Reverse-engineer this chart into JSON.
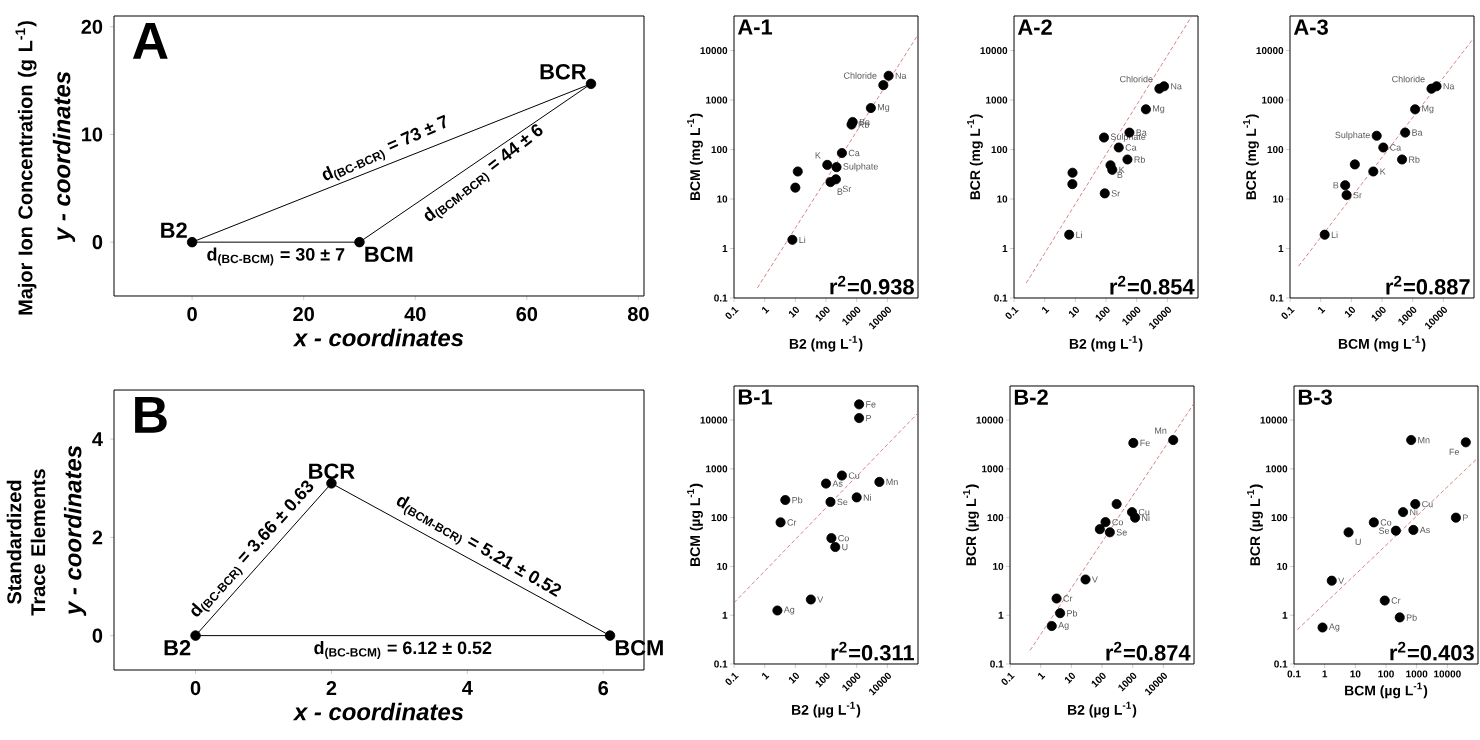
{
  "chart_data": [
    {
      "type": "scatter",
      "title": "A",
      "xlabel": "x - coordinates",
      "ylabel": "y - coordinates",
      "xlim": [
        -14,
        81
      ],
      "ylim": [
        -5,
        21
      ],
      "xticks": [
        0,
        20,
        40,
        60,
        80
      ],
      "yticks": [
        0,
        10,
        20
      ],
      "series": [
        {
          "type": "line",
          "color": "#000000",
          "x": [
            0,
            30
          ],
          "values": [
            0,
            0
          ]
        },
        {
          "type": "line",
          "color": "#000000",
          "x": [
            30,
            71.5
          ],
          "values": [
            0,
            14.7
          ]
        },
        {
          "type": "line",
          "color": "#000000",
          "x": [
            0,
            71.5
          ],
          "values": [
            0,
            14.7
          ]
        },
        {
          "color": "#000000",
          "marker": "circle",
          "x": [
            0,
            30,
            71.5
          ],
          "values": [
            0,
            0,
            14.7
          ]
        }
      ],
      "annotations": [
        "Major Ion Concentration (g L$^{-1}$)",
        {
          "text": "B2",
          "x": 0,
          "y": 0
        },
        {
          "text": "BCM",
          "x": 30,
          "y": 0
        },
        {
          "text": "BCR",
          "x": 71.5,
          "y": 14.7
        },
        {
          "text": "d$_{(BC-BCR)}$ = 73 ± 7",
          "x": 35.75,
          "y": 7.35
        },
        {
          "text": "d$_{(BCM-BCR)}$ = 44 ± 6",
          "x": 50.75,
          "y": 7.35
        },
        {
          "text": "d$_{(BC-BCM)}$ = 30 ± 7",
          "x": 15,
          "y": 0
        }
      ]
    },
    {
      "type": "scatter",
      "title": "A-1",
      "xlabel": "B2 (mg L$^{-1}$)",
      "ylabel": "BCM (mg L$^{-1}$)",
      "log": "xy",
      "xlim": [
        0.1,
        100000
      ],
      "ylim": [
        0.1,
        50000
      ],
      "xticks": [
        0.1,
        1,
        10,
        100,
        1000,
        10000
      ],
      "yticks": [
        0.1,
        1,
        10,
        100,
        1000,
        10000
      ],
      "series": [
        {
          "color": "#000000",
          "marker": "circle",
          "x": [
            8,
            10,
            12,
            110,
            220,
            140,
            210,
            330,
            680,
            740,
            2900,
            7400,
            11000
          ],
          "values": [
            1.5,
            17,
            36,
            49,
            44,
            22,
            25,
            85,
            320,
            360,
            690,
            2000,
            3100
          ]
        },
        {
          "type": "line",
          "color": "#cc6666",
          "line_style": "dashed",
          "x": [
            0.58,
            100000
          ],
          "values": [
            0.16,
            21000
          ]
        }
      ],
      "annotations": [
        "r$^{2}$=0.938",
        {
          "text": "Chloride",
          "x": 7400,
          "y": 2000
        },
        {
          "text": "Na",
          "x": 11000,
          "y": 3100
        },
        {
          "text": "Mg",
          "x": 2900,
          "y": 690
        },
        {
          "text": "Ba",
          "x": 740,
          "y": 360
        },
        {
          "text": "Rb",
          "x": 680,
          "y": 320
        },
        {
          "text": "Ca",
          "x": 330,
          "y": 85
        },
        {
          "text": "Sulphate",
          "x": 220,
          "y": 44
        },
        {
          "text": "K",
          "x": 110,
          "y": 49
        },
        {
          "text": "Sr",
          "x": 210,
          "y": 25
        },
        {
          "text": "B",
          "x": 140,
          "y": 22
        },
        {
          "text": "Li",
          "x": 8,
          "y": 1.5
        }
      ]
    },
    {
      "type": "scatter",
      "title": "A-2",
      "xlabel": "B2 (mg L$^{-1}$)",
      "ylabel": "BCR (mg L$^{-1}$)",
      "log": "xy",
      "xlim": [
        0.1,
        100000
      ],
      "ylim": [
        0.1,
        50000
      ],
      "xticks": [
        0.1,
        1,
        10,
        100,
        1000,
        10000
      ],
      "yticks": [
        0.1,
        1,
        10,
        100,
        1000,
        10000
      ],
      "series": [
        {
          "color": "#000000",
          "marker": "circle",
          "x": [
            6.3,
            8.1,
            8,
            91,
            140,
            160,
            86,
            260,
            500,
            580,
            2000,
            5500,
            7800
          ],
          "values": [
            1.9,
            34,
            20,
            13,
            48,
            39,
            175,
            110,
            63,
            220,
            650,
            1700,
            1900
          ]
        },
        {
          "type": "line",
          "color": "#cc6666",
          "line_style": "dashed",
          "x": [
            0.25,
            63000
          ],
          "values": [
            0.2,
            50000
          ]
        }
      ],
      "annotations": [
        "r$^{2}$=0.854",
        {
          "text": "Chloride",
          "x": 5500,
          "y": 1700
        },
        {
          "text": "Na",
          "x": 7800,
          "y": 1900
        },
        {
          "text": "Mg",
          "x": 2000,
          "y": 650
        },
        {
          "text": "Sulphate",
          "x": 86,
          "y": 175
        },
        {
          "text": "Ba",
          "x": 580,
          "y": 220
        },
        {
          "text": "Ca",
          "x": 260,
          "y": 110
        },
        {
          "text": "Rb",
          "x": 500,
          "y": 63
        },
        {
          "text": "K",
          "x": 160,
          "y": 39
        },
        {
          "text": "B",
          "x": 140,
          "y": 48
        },
        {
          "text": "Sr",
          "x": 91,
          "y": 13
        },
        {
          "text": "Li",
          "x": 6.3,
          "y": 1.9
        }
      ]
    },
    {
      "type": "scatter",
      "title": "A-3",
      "xlabel": "BCM (mg L$^{-1}$)",
      "ylabel": "BCR (mg L$^{-1}$)",
      "log": "xy",
      "xlim": [
        0.1,
        100000
      ],
      "ylim": [
        0.1,
        50000
      ],
      "xticks": [
        0.1,
        1,
        10,
        100,
        1000,
        10000
      ],
      "yticks": [
        0.1,
        1,
        10,
        100,
        1000,
        10000
      ],
      "series": [
        {
          "color": "#000000",
          "marker": "circle",
          "x": [
            1.35,
            6.3,
            7,
            13,
            52,
            67,
            110,
            450,
            570,
            1200,
            4100,
            6000
          ],
          "values": [
            1.9,
            19,
            12,
            50,
            36,
            190,
            110,
            63,
            220,
            650,
            1700,
            1900
          ]
        },
        {
          "type": "line",
          "color": "#cc6666",
          "line_style": "dashed",
          "x": [
            0.19,
            85000
          ],
          "values": [
            0.44,
            16000
          ]
        }
      ],
      "annotations": [
        "r$^{2}$=0.887",
        {
          "text": "Chloride",
          "x": 4100,
          "y": 1700
        },
        {
          "text": "Na",
          "x": 6000,
          "y": 1900
        },
        {
          "text": "Mg",
          "x": 1200,
          "y": 650
        },
        {
          "text": "Sulphate",
          "x": 67,
          "y": 190
        },
        {
          "text": "Ba",
          "x": 570,
          "y": 220
        },
        {
          "text": "Ca",
          "x": 110,
          "y": 110
        },
        {
          "text": "Rb",
          "x": 450,
          "y": 63
        },
        {
          "text": "K",
          "x": 52,
          "y": 36
        },
        {
          "text": "B",
          "x": 6.3,
          "y": 19
        },
        {
          "text": "Sr",
          "x": 7,
          "y": 12
        },
        {
          "text": "Li",
          "x": 1.35,
          "y": 1.9
        }
      ]
    },
    {
      "type": "scatter",
      "title": "B",
      "xlabel": "x - coordinates",
      "ylabel": "y - coordinates",
      "xlim": [
        -1.2,
        6.6
      ],
      "ylim": [
        -0.7,
        5
      ],
      "xticks": [
        0,
        2,
        4,
        6
      ],
      "yticks": [
        0,
        2,
        4
      ],
      "series": [
        {
          "type": "line",
          "color": "#000000",
          "x": [
            0,
            6.1
          ],
          "values": [
            0,
            0
          ]
        },
        {
          "type": "line",
          "color": "#000000",
          "x": [
            2,
            6.1
          ],
          "values": [
            3.1,
            0
          ]
        },
        {
          "type": "line",
          "color": "#000000",
          "x": [
            0,
            2
          ],
          "values": [
            0,
            3.1
          ]
        },
        {
          "color": "#000000",
          "marker": "circle",
          "x": [
            0,
            6.1,
            2
          ],
          "values": [
            0,
            0,
            3.1
          ]
        }
      ],
      "annotations": [
        "Standardized Trace Elements",
        {
          "text": "B2",
          "x": 0,
          "y": 0
        },
        {
          "text": "BCM",
          "x": 6.1,
          "y": 0
        },
        {
          "text": "BCR",
          "x": 2,
          "y": 3.1
        },
        {
          "text": "d$_{(BC-BCR)}$ = 3.66 ± 0.63",
          "x": 1,
          "y": 1.55
        },
        {
          "text": "d$_{(BCM-BCR)}$ = 5.21 ± 0.52",
          "x": 4.05,
          "y": 1.55
        },
        {
          "text": "d$_{(BC-BCM)}$ = 6.12 ± 0.52",
          "x": 3.05,
          "y": 0
        }
      ]
    },
    {
      "type": "scatter",
      "title": "B-1",
      "xlabel": "B2 (µg L$^{-1}$)",
      "ylabel": "BCM (µg L$^{-1}$)",
      "log": "xy",
      "xlim": [
        0.1,
        100000
      ],
      "ylim": [
        0.1,
        50000
      ],
      "xticks": [
        0.1,
        1,
        10,
        100,
        1000,
        10000
      ],
      "yticks": [
        0.1,
        1,
        10,
        100,
        1000,
        10000
      ],
      "series": [
        {
          "color": "#000000",
          "marker": "circle",
          "x": [
            2.6,
            32,
            3.3,
            4.7,
            140,
            100,
            330,
            1000,
            150,
            200,
            1200,
            1200,
            5500
          ],
          "values": [
            1.25,
            2.1,
            80,
            230,
            210,
            500,
            730,
            260,
            38,
            25,
            21000,
            11000,
            540
          ]
        },
        {
          "type": "line",
          "color": "#cc6666",
          "line_style": "dashed",
          "x": [
            0.1,
            100000
          ],
          "values": [
            1.8,
            14000
          ]
        }
      ],
      "annotations": [
        "r$^{2}$=0.311",
        {
          "text": "Fe",
          "x": 1200,
          "y": 21000
        },
        {
          "text": "P",
          "x": 1200,
          "y": 11000
        },
        {
          "text": "Mn",
          "x": 5500,
          "y": 540
        },
        {
          "text": "Cu",
          "x": 330,
          "y": 730
        },
        {
          "text": "As",
          "x": 100,
          "y": 500
        },
        {
          "text": "Se",
          "x": 140,
          "y": 210
        },
        {
          "text": "Ni",
          "x": 1000,
          "y": 260
        },
        {
          "text": "Pb",
          "x": 4.7,
          "y": 230
        },
        {
          "text": "Cr",
          "x": 3.3,
          "y": 80
        },
        {
          "text": "Co",
          "x": 150,
          "y": 38
        },
        {
          "text": "U",
          "x": 200,
          "y": 25
        },
        {
          "text": "V",
          "x": 32,
          "y": 2.1
        },
        {
          "text": "Ag",
          "x": 2.6,
          "y": 1.25
        }
      ]
    },
    {
      "type": "scatter",
      "title": "B-2",
      "xlabel": "B2 (µg L$^{-1}$)",
      "ylabel": "BCR (µg L$^{-1}$)",
      "log": "xy",
      "xlim": [
        0.1,
        100000
      ],
      "ylim": [
        0.1,
        50000
      ],
      "xticks": [
        0.1,
        1,
        10,
        100,
        1000,
        10000
      ],
      "yticks": [
        0.1,
        1,
        10,
        100,
        1000,
        10000
      ],
      "series": [
        {
          "color": "#000000",
          "marker": "circle",
          "x": [
            2.3,
            4.3,
            3.3,
            29,
            85,
            130,
            180,
            300,
            950,
            1200,
            1050,
            21000
          ],
          "values": [
            0.6,
            1.1,
            2.2,
            5.4,
            58,
            81,
            50,
            190,
            130,
            100,
            3400,
            3900
          ]
        },
        {
          "type": "line",
          "color": "#cc6666",
          "line_style": "dashed",
          "x": [
            0.45,
            100000
          ],
          "values": [
            0.19,
            22000
          ]
        }
      ],
      "annotations": [
        "r$^{2}$=0.874",
        {
          "text": "Mn",
          "x": 21000,
          "y": 3900
        },
        {
          "text": "Fe",
          "x": 1050,
          "y": 3400
        },
        {
          "text": "Cu",
          "x": 950,
          "y": 130
        },
        {
          "text": "Ni",
          "x": 1200,
          "y": 100
        },
        {
          "text": "Se",
          "x": 180,
          "y": 50
        },
        {
          "text": "Co",
          "x": 130,
          "y": 81
        },
        {
          "text": "V",
          "x": 29,
          "y": 5.4
        },
        {
          "text": "Cr",
          "x": 3.3,
          "y": 2.2
        },
        {
          "text": "Pb",
          "x": 4.3,
          "y": 1.1
        },
        {
          "text": "Ag",
          "x": 2.3,
          "y": 0.6
        }
      ]
    },
    {
      "type": "scatter",
      "title": "B-3",
      "xlabel": "BCM (µg L$^{-1}$)",
      "ylabel": "BCR (µg L$^{-1}$)",
      "log": "xy",
      "xlim": [
        0.1,
        100000
      ],
      "ylim": [
        0.1,
        50000
      ],
      "xticks": [
        0.1,
        1,
        10,
        100,
        1000,
        10000
      ],
      "yticks": [
        0.1,
        1,
        10,
        100,
        1000,
        10000
      ],
      "series": [
        {
          "color": "#000000",
          "marker": "circle",
          "x": [
            0.85,
            1.7,
            6,
            40,
            210,
            360,
            900,
            780,
            91,
            280,
            660,
            40000,
            19000
          ],
          "values": [
            0.56,
            5.1,
            50,
            80,
            54,
            130,
            190,
            56,
            2.0,
            0.9,
            3900,
            3500,
            100
          ]
        },
        {
          "type": "line",
          "color": "#cc6666",
          "line_style": "dashed",
          "x": [
            0.13,
            91000
          ],
          "values": [
            0.51,
            1600
          ]
        }
      ],
      "annotations": [
        "r$^{2}$=0.403",
        {
          "text": "Mn",
          "x": 660,
          "y": 3900
        },
        {
          "text": "Fe",
          "x": 40000,
          "y": 3500
        },
        {
          "text": "Cu",
          "x": 900,
          "y": 190
        },
        {
          "text": "Ni",
          "x": 360,
          "y": 130
        },
        {
          "text": "As",
          "x": 780,
          "y": 56
        },
        {
          "text": "Se",
          "x": 210,
          "y": 54
        },
        {
          "text": "Co",
          "x": 40,
          "y": 80
        },
        {
          "text": "U",
          "x": 6,
          "y": 50
        },
        {
          "text": "P",
          "x": 19000,
          "y": 100
        },
        {
          "text": "V",
          "x": 1.7,
          "y": 5.1
        },
        {
          "text": "Cr",
          "x": 91,
          "y": 2.0
        },
        {
          "text": "Pb",
          "x": 280,
          "y": 0.9
        },
        {
          "text": "Ag",
          "x": 0.85,
          "y": 0.56
        }
      ]
    }
  ]
}
